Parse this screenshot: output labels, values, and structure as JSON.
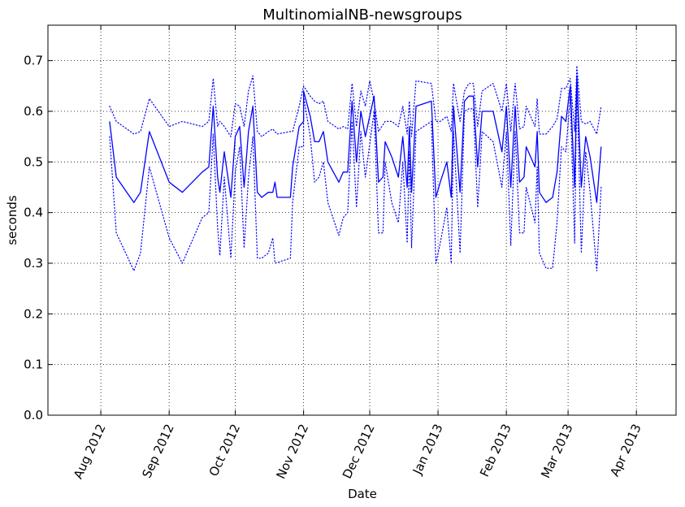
{
  "chart_data": {
    "type": "line",
    "title": "MultinomialNB-newsgroups",
    "xlabel": "Date",
    "ylabel": "seconds",
    "x_axis": "date",
    "xlim": [
      "2012-07-08",
      "2013-04-19"
    ],
    "ylim": [
      0.0,
      0.77
    ],
    "yticks": [
      "0.0",
      "0.1",
      "0.2",
      "0.3",
      "0.4",
      "0.5",
      "0.6",
      "0.7"
    ],
    "xticks": [
      {
        "date": "2012-08-01",
        "label": "Aug 2012"
      },
      {
        "date": "2012-09-01",
        "label": "Sep 2012"
      },
      {
        "date": "2012-10-01",
        "label": "Oct 2012"
      },
      {
        "date": "2012-11-01",
        "label": "Nov 2012"
      },
      {
        "date": "2012-12-01",
        "label": "Dec 2012"
      },
      {
        "date": "2013-01-01",
        "label": "Jan 2013"
      },
      {
        "date": "2013-02-01",
        "label": "Feb 2013"
      },
      {
        "date": "2013-03-01",
        "label": "Mar 2013"
      },
      {
        "date": "2013-04-01",
        "label": "Apr 2013"
      }
    ],
    "grid": true,
    "color": "#0000ff",
    "series": [
      {
        "style": "solid",
        "points": [
          [
            "2012-08-05",
            0.58
          ],
          [
            "2012-08-08",
            0.47
          ],
          [
            "2012-08-16",
            0.42
          ],
          [
            "2012-08-19",
            0.44
          ],
          [
            "2012-08-23",
            0.56
          ],
          [
            "2012-09-01",
            0.46
          ],
          [
            "2012-09-07",
            0.44
          ],
          [
            "2012-09-16",
            0.48
          ],
          [
            "2012-09-19",
            0.49
          ],
          [
            "2012-09-21",
            0.61
          ],
          [
            "2012-09-23",
            0.47
          ],
          [
            "2012-09-24",
            0.44
          ],
          [
            "2012-09-26",
            0.52
          ],
          [
            "2012-09-29",
            0.43
          ],
          [
            "2012-10-01",
            0.55
          ],
          [
            "2012-10-03",
            0.57
          ],
          [
            "2012-10-05",
            0.45
          ],
          [
            "2012-10-07",
            0.56
          ],
          [
            "2012-10-09",
            0.61
          ],
          [
            "2012-10-11",
            0.44
          ],
          [
            "2012-10-13",
            0.43
          ],
          [
            "2012-10-16",
            0.44
          ],
          [
            "2012-10-18",
            0.44
          ],
          [
            "2012-10-19",
            0.46
          ],
          [
            "2012-10-20",
            0.43
          ],
          [
            "2012-10-26",
            0.43
          ],
          [
            "2012-10-27",
            0.49
          ],
          [
            "2012-10-30",
            0.57
          ],
          [
            "2012-11-01",
            0.58
          ],
          [
            "2012-11-01",
            0.64
          ],
          [
            "2012-11-04",
            0.59
          ],
          [
            "2012-11-06",
            0.54
          ],
          [
            "2012-11-08",
            0.54
          ],
          [
            "2012-11-10",
            0.56
          ],
          [
            "2012-11-12",
            0.5
          ],
          [
            "2012-11-17",
            0.46
          ],
          [
            "2012-11-19",
            0.48
          ],
          [
            "2012-11-21",
            0.48
          ],
          [
            "2012-11-23",
            0.62
          ],
          [
            "2012-11-25",
            0.5
          ],
          [
            "2012-11-27",
            0.6
          ],
          [
            "2012-11-29",
            0.55
          ],
          [
            "2012-12-03",
            0.63
          ],
          [
            "2012-12-05",
            0.46
          ],
          [
            "2012-12-07",
            0.47
          ],
          [
            "2012-12-08",
            0.54
          ],
          [
            "2012-12-11",
            0.51
          ],
          [
            "2012-12-14",
            0.47
          ],
          [
            "2012-12-16",
            0.55
          ],
          [
            "2012-12-18",
            0.45
          ],
          [
            "2012-12-19",
            0.57
          ],
          [
            "2012-12-20",
            0.44
          ],
          [
            "2012-12-22",
            0.61
          ],
          [
            "2012-12-29",
            0.62
          ],
          [
            "2012-12-31",
            0.43
          ],
          [
            "2013-01-02",
            0.46
          ],
          [
            "2013-01-05",
            0.5
          ],
          [
            "2013-01-07",
            0.43
          ],
          [
            "2013-01-08",
            0.61
          ],
          [
            "2013-01-11",
            0.44
          ],
          [
            "2013-01-13",
            0.62
          ],
          [
            "2013-01-15",
            0.63
          ],
          [
            "2013-01-17",
            0.63
          ],
          [
            "2013-01-19",
            0.49
          ],
          [
            "2013-01-21",
            0.6
          ],
          [
            "2013-01-26",
            0.6
          ],
          [
            "2013-01-30",
            0.52
          ],
          [
            "2013-02-01",
            0.61
          ],
          [
            "2013-02-03",
            0.45
          ],
          [
            "2013-02-05",
            0.61
          ],
          [
            "2013-02-07",
            0.46
          ],
          [
            "2013-02-09",
            0.47
          ],
          [
            "2013-02-10",
            0.53
          ],
          [
            "2013-02-14",
            0.49
          ],
          [
            "2013-02-15",
            0.56
          ],
          [
            "2013-02-16",
            0.44
          ],
          [
            "2013-02-19",
            0.42
          ],
          [
            "2013-02-22",
            0.43
          ],
          [
            "2013-02-24",
            0.48
          ],
          [
            "2013-02-26",
            0.59
          ],
          [
            "2013-02-28",
            0.58
          ],
          [
            "2013-03-02",
            0.65
          ],
          [
            "2013-03-04",
            0.45
          ],
          [
            "2013-03-05",
            0.67
          ],
          [
            "2013-03-07",
            0.45
          ],
          [
            "2013-03-09",
            0.55
          ],
          [
            "2013-03-11",
            0.51
          ],
          [
            "2013-03-14",
            0.42
          ],
          [
            "2013-03-16",
            0.53
          ]
        ]
      },
      {
        "style": "dotted",
        "points": [
          [
            "2012-08-05",
            0.61
          ],
          [
            "2012-08-08",
            0.58
          ],
          [
            "2012-08-16",
            0.555
          ],
          [
            "2012-08-19",
            0.56
          ],
          [
            "2012-08-23",
            0.625
          ],
          [
            "2012-09-01",
            0.57
          ],
          [
            "2012-09-07",
            0.58
          ],
          [
            "2012-09-16",
            0.57
          ],
          [
            "2012-09-19",
            0.58
          ],
          [
            "2012-09-21",
            0.665
          ],
          [
            "2012-09-23",
            0.57
          ],
          [
            "2012-09-24",
            0.58
          ],
          [
            "2012-09-26",
            0.57
          ],
          [
            "2012-09-29",
            0.55
          ],
          [
            "2012-10-01",
            0.615
          ],
          [
            "2012-10-03",
            0.61
          ],
          [
            "2012-10-05",
            0.57
          ],
          [
            "2012-10-07",
            0.64
          ],
          [
            "2012-10-09",
            0.67
          ],
          [
            "2012-10-11",
            0.56
          ],
          [
            "2012-10-13",
            0.55
          ],
          [
            "2012-10-16",
            0.56
          ],
          [
            "2012-10-18",
            0.565
          ],
          [
            "2012-10-20",
            0.555
          ],
          [
            "2012-10-26",
            0.56
          ],
          [
            "2012-10-27",
            0.56
          ],
          [
            "2012-10-30",
            0.61
          ],
          [
            "2012-11-01",
            0.65
          ],
          [
            "2012-11-04",
            0.63
          ],
          [
            "2012-11-06",
            0.62
          ],
          [
            "2012-11-08",
            0.615
          ],
          [
            "2012-11-10",
            0.62
          ],
          [
            "2012-11-12",
            0.58
          ],
          [
            "2012-11-17",
            0.565
          ],
          [
            "2012-11-19",
            0.57
          ],
          [
            "2012-11-21",
            0.565
          ],
          [
            "2012-11-23",
            0.655
          ],
          [
            "2012-11-25",
            0.57
          ],
          [
            "2012-11-27",
            0.64
          ],
          [
            "2012-11-29",
            0.61
          ],
          [
            "2012-12-01",
            0.66
          ],
          [
            "2012-12-03",
            0.62
          ],
          [
            "2012-12-05",
            0.56
          ],
          [
            "2012-12-08",
            0.58
          ],
          [
            "2012-12-11",
            0.58
          ],
          [
            "2012-12-14",
            0.57
          ],
          [
            "2012-12-16",
            0.61
          ],
          [
            "2012-12-18",
            0.555
          ],
          [
            "2012-12-19",
            0.62
          ],
          [
            "2012-12-20",
            0.55
          ],
          [
            "2012-12-22",
            0.66
          ],
          [
            "2012-12-29",
            0.655
          ],
          [
            "2012-12-31",
            0.58
          ],
          [
            "2013-01-02",
            0.58
          ],
          [
            "2013-01-05",
            0.59
          ],
          [
            "2013-01-07",
            0.56
          ],
          [
            "2013-01-08",
            0.655
          ],
          [
            "2013-01-11",
            0.58
          ],
          [
            "2013-01-13",
            0.64
          ],
          [
            "2013-01-15",
            0.655
          ],
          [
            "2013-01-17",
            0.655
          ],
          [
            "2013-01-19",
            0.57
          ],
          [
            "2013-01-21",
            0.64
          ],
          [
            "2013-01-26",
            0.655
          ],
          [
            "2013-01-30",
            0.6
          ],
          [
            "2013-02-01",
            0.655
          ],
          [
            "2013-02-03",
            0.56
          ],
          [
            "2013-02-05",
            0.655
          ],
          [
            "2013-02-07",
            0.565
          ],
          [
            "2013-02-09",
            0.57
          ],
          [
            "2013-02-10",
            0.61
          ],
          [
            "2013-02-14",
            0.57
          ],
          [
            "2013-02-15",
            0.625
          ],
          [
            "2013-02-16",
            0.555
          ],
          [
            "2013-02-19",
            0.555
          ],
          [
            "2013-02-22",
            0.57
          ],
          [
            "2013-02-24",
            0.585
          ],
          [
            "2013-02-26",
            0.645
          ],
          [
            "2013-02-28",
            0.645
          ],
          [
            "2013-03-02",
            0.665
          ],
          [
            "2013-03-04",
            0.56
          ],
          [
            "2013-03-05",
            0.69
          ],
          [
            "2013-03-07",
            0.58
          ],
          [
            "2013-03-09",
            0.575
          ],
          [
            "2013-03-11",
            0.58
          ],
          [
            "2013-03-14",
            0.555
          ],
          [
            "2013-03-16",
            0.61
          ]
        ]
      },
      {
        "style": "dotted",
        "points": [
          [
            "2012-08-05",
            0.55
          ],
          [
            "2012-08-08",
            0.36
          ],
          [
            "2012-08-16",
            0.285
          ],
          [
            "2012-08-19",
            0.32
          ],
          [
            "2012-08-23",
            0.49
          ],
          [
            "2012-09-01",
            0.35
          ],
          [
            "2012-09-07",
            0.3
          ],
          [
            "2012-09-16",
            0.39
          ],
          [
            "2012-09-19",
            0.4
          ],
          [
            "2012-09-21",
            0.555
          ],
          [
            "2012-09-23",
            0.37
          ],
          [
            "2012-09-24",
            0.315
          ],
          [
            "2012-09-26",
            0.47
          ],
          [
            "2012-09-29",
            0.31
          ],
          [
            "2012-10-01",
            0.48
          ],
          [
            "2012-10-03",
            0.53
          ],
          [
            "2012-10-05",
            0.33
          ],
          [
            "2012-10-07",
            0.47
          ],
          [
            "2012-10-09",
            0.55
          ],
          [
            "2012-10-11",
            0.31
          ],
          [
            "2012-10-13",
            0.31
          ],
          [
            "2012-10-16",
            0.32
          ],
          [
            "2012-10-18",
            0.35
          ],
          [
            "2012-10-19",
            0.3
          ],
          [
            "2012-10-26",
            0.31
          ],
          [
            "2012-10-27",
            0.42
          ],
          [
            "2012-10-30",
            0.53
          ],
          [
            "2012-11-01",
            0.53
          ],
          [
            "2012-11-01",
            0.63
          ],
          [
            "2012-11-04",
            0.55
          ],
          [
            "2012-11-06",
            0.46
          ],
          [
            "2012-11-08",
            0.47
          ],
          [
            "2012-11-10",
            0.5
          ],
          [
            "2012-11-12",
            0.42
          ],
          [
            "2012-11-17",
            0.355
          ],
          [
            "2012-11-19",
            0.39
          ],
          [
            "2012-11-21",
            0.4
          ],
          [
            "2012-11-23",
            0.58
          ],
          [
            "2012-11-25",
            0.41
          ],
          [
            "2012-11-27",
            0.56
          ],
          [
            "2012-11-29",
            0.47
          ],
          [
            "2012-12-03",
            0.6
          ],
          [
            "2012-12-05",
            0.36
          ],
          [
            "2012-12-07",
            0.36
          ],
          [
            "2012-12-08",
            0.5
          ],
          [
            "2012-12-11",
            0.42
          ],
          [
            "2012-12-14",
            0.38
          ],
          [
            "2012-12-16",
            0.5
          ],
          [
            "2012-12-18",
            0.34
          ],
          [
            "2012-12-19",
            0.52
          ],
          [
            "2012-12-20",
            0.33
          ],
          [
            "2012-12-22",
            0.56
          ],
          [
            "2012-12-29",
            0.58
          ],
          [
            "2012-12-31",
            0.3
          ],
          [
            "2013-01-02",
            0.34
          ],
          [
            "2013-01-05",
            0.41
          ],
          [
            "2013-01-07",
            0.3
          ],
          [
            "2013-01-08",
            0.56
          ],
          [
            "2013-01-11",
            0.32
          ],
          [
            "2013-01-13",
            0.6
          ],
          [
            "2013-01-15",
            0.605
          ],
          [
            "2013-01-17",
            0.605
          ],
          [
            "2013-01-19",
            0.41
          ],
          [
            "2013-01-21",
            0.56
          ],
          [
            "2013-01-26",
            0.54
          ],
          [
            "2013-01-30",
            0.45
          ],
          [
            "2013-02-01",
            0.56
          ],
          [
            "2013-02-03",
            0.335
          ],
          [
            "2013-02-05",
            0.56
          ],
          [
            "2013-02-07",
            0.36
          ],
          [
            "2013-02-09",
            0.36
          ],
          [
            "2013-02-10",
            0.45
          ],
          [
            "2013-02-14",
            0.38
          ],
          [
            "2013-02-15",
            0.49
          ],
          [
            "2013-02-16",
            0.32
          ],
          [
            "2013-02-19",
            0.29
          ],
          [
            "2013-02-22",
            0.29
          ],
          [
            "2013-02-24",
            0.38
          ],
          [
            "2013-02-26",
            0.53
          ],
          [
            "2013-02-28",
            0.52
          ],
          [
            "2013-03-02",
            0.63
          ],
          [
            "2013-03-04",
            0.34
          ],
          [
            "2013-03-05",
            0.655
          ],
          [
            "2013-03-07",
            0.32
          ],
          [
            "2013-03-09",
            0.52
          ],
          [
            "2013-03-11",
            0.44
          ],
          [
            "2013-03-14",
            0.285
          ],
          [
            "2013-03-16",
            0.45
          ]
        ]
      }
    ]
  }
}
